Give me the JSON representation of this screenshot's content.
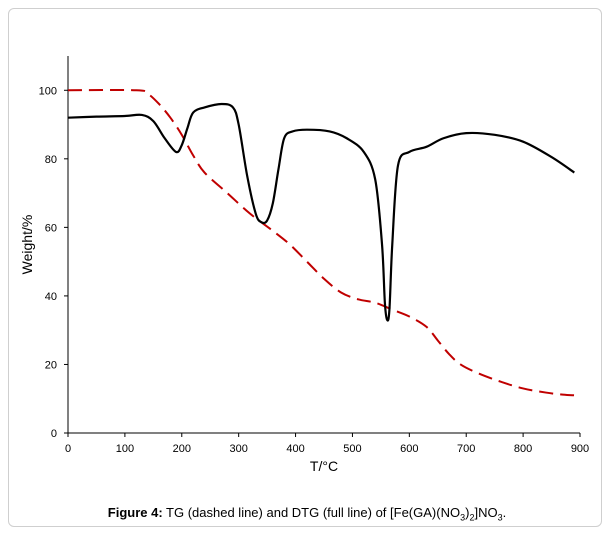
{
  "chart_data": {
    "type": "line",
    "xlabel": "T/°C",
    "ylabel": "Weight/%",
    "xlim": [
      0,
      900
    ],
    "ylim": [
      0,
      110
    ],
    "x_ticks": [
      0,
      100,
      200,
      300,
      400,
      500,
      600,
      700,
      800,
      900
    ],
    "y_ticks": [
      0,
      20,
      40,
      60,
      80,
      100
    ],
    "grid": false,
    "legend": "none",
    "series": [
      {
        "style": "dashed",
        "color": "#c00000",
        "x": [
          0,
          120,
          140,
          160,
          180,
          200,
          220,
          240,
          280,
          320,
          360,
          390,
          420,
          450,
          480,
          510,
          540,
          570,
          600,
          630,
          650,
          670,
          690,
          720,
          760,
          800,
          840,
          870,
          890
        ],
        "y": [
          100,
          100,
          99,
          96,
          92,
          87,
          81,
          76,
          70,
          64,
          59,
          55,
          50,
          45,
          41,
          39,
          38,
          36,
          34,
          31,
          27,
          23,
          20,
          17.5,
          15,
          13,
          11.8,
          11.2,
          11
        ]
      },
      {
        "style": "solid",
        "color": "#000000",
        "x": [
          0,
          50,
          100,
          130,
          150,
          170,
          190,
          200,
          210,
          220,
          240,
          270,
          290,
          300,
          315,
          330,
          340,
          350,
          360,
          370,
          380,
          395,
          420,
          460,
          490,
          520,
          540,
          552,
          557,
          561,
          565,
          570,
          580,
          600,
          630,
          660,
          700,
          750,
          800,
          850,
          890
        ],
        "y": [
          92,
          92.3,
          92.5,
          92.8,
          91,
          86,
          82,
          84,
          89,
          93.5,
          95,
          96,
          95,
          90,
          75,
          64,
          61.5,
          62,
          67,
          77,
          86,
          88,
          88.5,
          88,
          86,
          82,
          74,
          55,
          38,
          33,
          36,
          55,
          78,
          82,
          83.5,
          86,
          87.5,
          87,
          85,
          80.5,
          76
        ]
      }
    ]
  },
  "caption": {
    "label": "Figure 4:",
    "text_before": " TG (dashed line) and DTG (full line) of [Fe(GA)(NO",
    "sub1": "3",
    "mid1": ")",
    "sub2": "2",
    "mid2": "]NO",
    "sub3": "3",
    "end": "."
  }
}
